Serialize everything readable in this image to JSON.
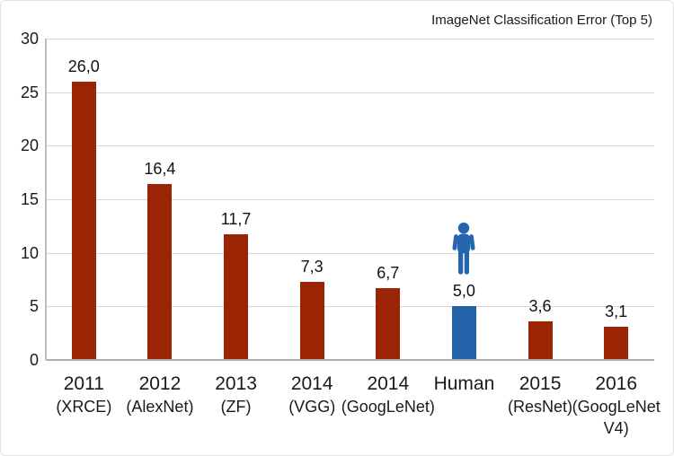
{
  "chart_data": {
    "type": "bar",
    "title": "ImageNet Classification Error (Top 5)",
    "categories": [
      {
        "label": "2011",
        "sub": "(XRCE)"
      },
      {
        "label": "2012",
        "sub": "(AlexNet)"
      },
      {
        "label": "2013",
        "sub": "(ZF)"
      },
      {
        "label": "2014",
        "sub": "(VGG)"
      },
      {
        "label": "2014",
        "sub": "(GoogLeNet)"
      },
      {
        "label": "Human",
        "sub": ""
      },
      {
        "label": "2015",
        "sub": "(ResNet)"
      },
      {
        "label": "2016",
        "sub": "(GoogLeNet V4)"
      }
    ],
    "values": [
      26.0,
      16.4,
      11.7,
      7.3,
      6.7,
      5.0,
      3.6,
      3.1
    ],
    "value_labels": [
      "26,0",
      "16,4",
      "11,7",
      "7,3",
      "6,7",
      "5,0",
      "3,6",
      "3,1"
    ],
    "highlight_index": 5,
    "ylim": [
      0,
      30
    ],
    "yticks": [
      0,
      5,
      10,
      15,
      20,
      25,
      30
    ],
    "grid": true,
    "legend": "none",
    "colors": {
      "bar_default": "#9A2403",
      "bar_highlight": "#2362A8",
      "icon": "#2565AE",
      "grid": "#D8D8D8",
      "baseline": "#B0B0B0",
      "axis": "#BDBDBD",
      "text": "#1A1A1A"
    },
    "icons": [
      {
        "name": "human-icon",
        "category_index": 5
      }
    ]
  }
}
